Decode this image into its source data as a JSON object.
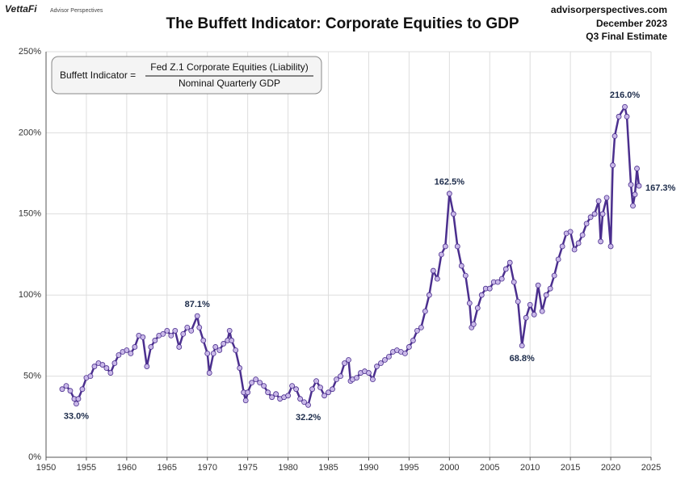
{
  "brand": "VettaFi",
  "brand_sub": "Advisor Perspectives",
  "source": "advisorperspectives.com",
  "date": "December 2023",
  "estimate": "Q3 Final Estimate",
  "formula": {
    "lhs": "Buffett Indicator =",
    "numerator": "Fed Z.1 Corporate Equities (Liability)",
    "denominator": "Nominal Quarterly GDP"
  },
  "chart_data": {
    "type": "line",
    "title": "The Buffett Indicator: Corporate Equities to GDP",
    "x": [
      1952.0,
      1952.5,
      1953.0,
      1953.5,
      1953.75,
      1954.0,
      1954.5,
      1955.0,
      1955.5,
      1956.0,
      1956.5,
      1957.0,
      1957.5,
      1958.0,
      1958.5,
      1959.0,
      1959.5,
      1960.0,
      1960.5,
      1961.0,
      1961.5,
      1962.0,
      1962.5,
      1963.0,
      1963.5,
      1964.0,
      1964.5,
      1965.0,
      1965.5,
      1966.0,
      1966.5,
      1967.0,
      1967.5,
      1968.0,
      1968.75,
      1969.0,
      1969.5,
      1970.0,
      1970.25,
      1970.75,
      1971.0,
      1971.5,
      1972.0,
      1972.5,
      1972.75,
      1973.0,
      1973.5,
      1974.0,
      1974.5,
      1974.75,
      1975.0,
      1975.5,
      1976.0,
      1976.5,
      1977.0,
      1977.5,
      1978.0,
      1978.5,
      1979.0,
      1979.5,
      1980.0,
      1980.5,
      1981.0,
      1981.5,
      1982.0,
      1982.5,
      1983.0,
      1983.5,
      1984.0,
      1984.5,
      1985.0,
      1985.5,
      1986.0,
      1986.5,
      1987.0,
      1987.5,
      1987.75,
      1988.0,
      1988.5,
      1989.0,
      1989.5,
      1990.0,
      1990.5,
      1991.0,
      1991.5,
      1992.0,
      1992.5,
      1993.0,
      1993.5,
      1994.0,
      1994.5,
      1995.0,
      1995.5,
      1996.0,
      1996.5,
      1997.0,
      1997.5,
      1998.0,
      1998.5,
      1999.0,
      1999.5,
      2000.0,
      2000.5,
      2001.0,
      2001.5,
      2002.0,
      2002.5,
      2002.75,
      2003.0,
      2003.5,
      2004.0,
      2004.5,
      2005.0,
      2005.5,
      2006.0,
      2006.5,
      2007.0,
      2007.5,
      2008.0,
      2008.5,
      2009.0,
      2009.5,
      2010.0,
      2010.5,
      2011.0,
      2011.5,
      2012.0,
      2012.5,
      2013.0,
      2013.5,
      2014.0,
      2014.5,
      2015.0,
      2015.5,
      2016.0,
      2016.5,
      2017.0,
      2017.5,
      2018.0,
      2018.5,
      2018.75,
      2019.0,
      2019.5,
      2020.0,
      2020.25,
      2020.5,
      2021.0,
      2021.75,
      2022.0,
      2022.5,
      2022.75,
      2023.0,
      2023.25,
      2023.5
    ],
    "series": [
      {
        "name": "Buffett Indicator",
        "color": "#4b2f8e",
        "marker_color": "#c9b8e8",
        "values": [
          42,
          44,
          41,
          36,
          33.0,
          36,
          42,
          49,
          50,
          56,
          58,
          57,
          55,
          52,
          58,
          63,
          65,
          66,
          64,
          68,
          75,
          74,
          56,
          68,
          72,
          75,
          76,
          78,
          75,
          78,
          68,
          76,
          80,
          78,
          87.1,
          80,
          72,
          64,
          52,
          64,
          68,
          66,
          70,
          72,
          78,
          72,
          66,
          55,
          40,
          35,
          40,
          46,
          48,
          46,
          44,
          40,
          37,
          39,
          36,
          37,
          38,
          44,
          42,
          36,
          34,
          32.2,
          42,
          47,
          43,
          38,
          40,
          42,
          48,
          50,
          58,
          60,
          47,
          48,
          49,
          52,
          53,
          52,
          48,
          56,
          58,
          60,
          62,
          65,
          66,
          65,
          64,
          68,
          72,
          78,
          80,
          90,
          100,
          115,
          110,
          125,
          130,
          162.5,
          150,
          130,
          118,
          112,
          95,
          80,
          82,
          92,
          100,
          104,
          104,
          108,
          108,
          110,
          116,
          120,
          108,
          96,
          68.8,
          86,
          94,
          88,
          106,
          90,
          100,
          104,
          112,
          122,
          130,
          138,
          139,
          128,
          132,
          137,
          144,
          148,
          150,
          158,
          133,
          150,
          160,
          130,
          180,
          198,
          210,
          216.0,
          210,
          168,
          155,
          162,
          178,
          167.3
        ]
      }
    ],
    "annotations": [
      {
        "x": 1953.75,
        "value": 33.0,
        "label": "33.0%",
        "pos": "below"
      },
      {
        "x": 1968.75,
        "value": 87.1,
        "label": "87.1%",
        "pos": "above"
      },
      {
        "x": 1982.5,
        "value": 32.2,
        "label": "32.2%",
        "pos": "below"
      },
      {
        "x": 2000.0,
        "value": 162.5,
        "label": "162.5%",
        "pos": "above"
      },
      {
        "x": 2009.0,
        "value": 68.8,
        "label": "68.8%",
        "pos": "below"
      },
      {
        "x": 2021.75,
        "value": 216.0,
        "label": "216.0%",
        "pos": "above"
      },
      {
        "x": 2023.5,
        "value": 167.3,
        "label": "167.3%",
        "pos": "right"
      }
    ],
    "xlim": [
      1950,
      2025
    ],
    "xticks": [
      1950,
      1955,
      1960,
      1965,
      1970,
      1975,
      1980,
      1985,
      1990,
      1995,
      2000,
      2005,
      2010,
      2015,
      2020,
      2025
    ],
    "ylim": [
      0,
      250
    ],
    "yticks": [
      {
        "value": 0,
        "label": "0%"
      },
      {
        "value": 50,
        "label": "50%"
      },
      {
        "value": 100,
        "label": "100%"
      },
      {
        "value": 150,
        "label": "150%"
      },
      {
        "value": 200,
        "label": "200%"
      },
      {
        "value": 250,
        "label": "250%"
      }
    ],
    "grid": true
  }
}
